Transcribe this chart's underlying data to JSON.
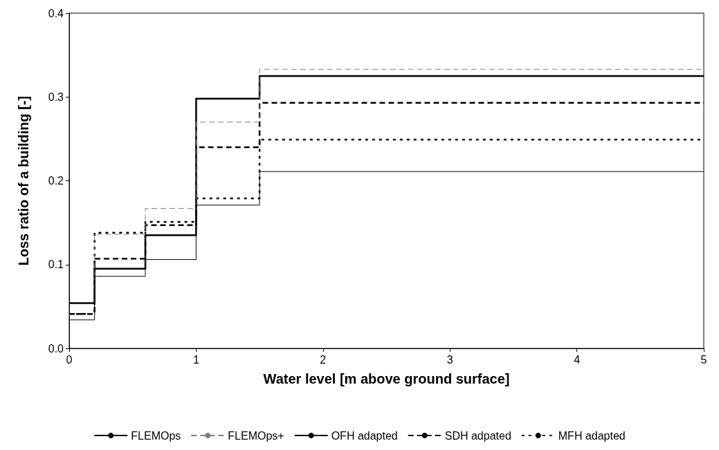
{
  "chart_data": {
    "type": "step",
    "xlabel": "Water level [m above ground surface]",
    "ylabel": "Loss ratio of a building [-]",
    "x": [
      0,
      0.2,
      0.6,
      1,
      1.5,
      5
    ],
    "xlim": [
      0,
      5
    ],
    "xticks": [
      0,
      1,
      2,
      3,
      4,
      5
    ],
    "ylim": [
      0,
      0.4
    ],
    "yticks": [
      {
        "value": 0,
        "label": "0.0"
      },
      0.1,
      0.2,
      0.3,
      0.4
    ],
    "grid": false,
    "legend": "bottom",
    "marker": "none",
    "series": [
      {
        "name": "FLEMOps",
        "color": "#000000",
        "line_style": "solid",
        "values": [
          0.034,
          0.086,
          0.106,
          0.171,
          0.211,
          0.211
        ]
      },
      {
        "name": "FLEMOps+",
        "color": "#808080",
        "line_style": "dashed",
        "values": [
          0.04,
          0.136,
          0.167,
          0.27,
          0.333,
          0.333
        ]
      },
      {
        "name": "OFH adapted",
        "color": "#000000",
        "line_style": "solid",
        "values": [
          0.054,
          0.095,
          0.135,
          0.298,
          0.325,
          0.325
        ]
      },
      {
        "name": "SDH adpated",
        "color": "#000000",
        "line_style": "dashed",
        "values": [
          0.041,
          0.107,
          0.147,
          0.24,
          0.293,
          0.293
        ]
      },
      {
        "name": "MFH adapted",
        "color": "#000000",
        "line_style": "dotted",
        "values": [
          0.041,
          0.138,
          0.151,
          0.179,
          0.249,
          0.249
        ]
      }
    ]
  }
}
